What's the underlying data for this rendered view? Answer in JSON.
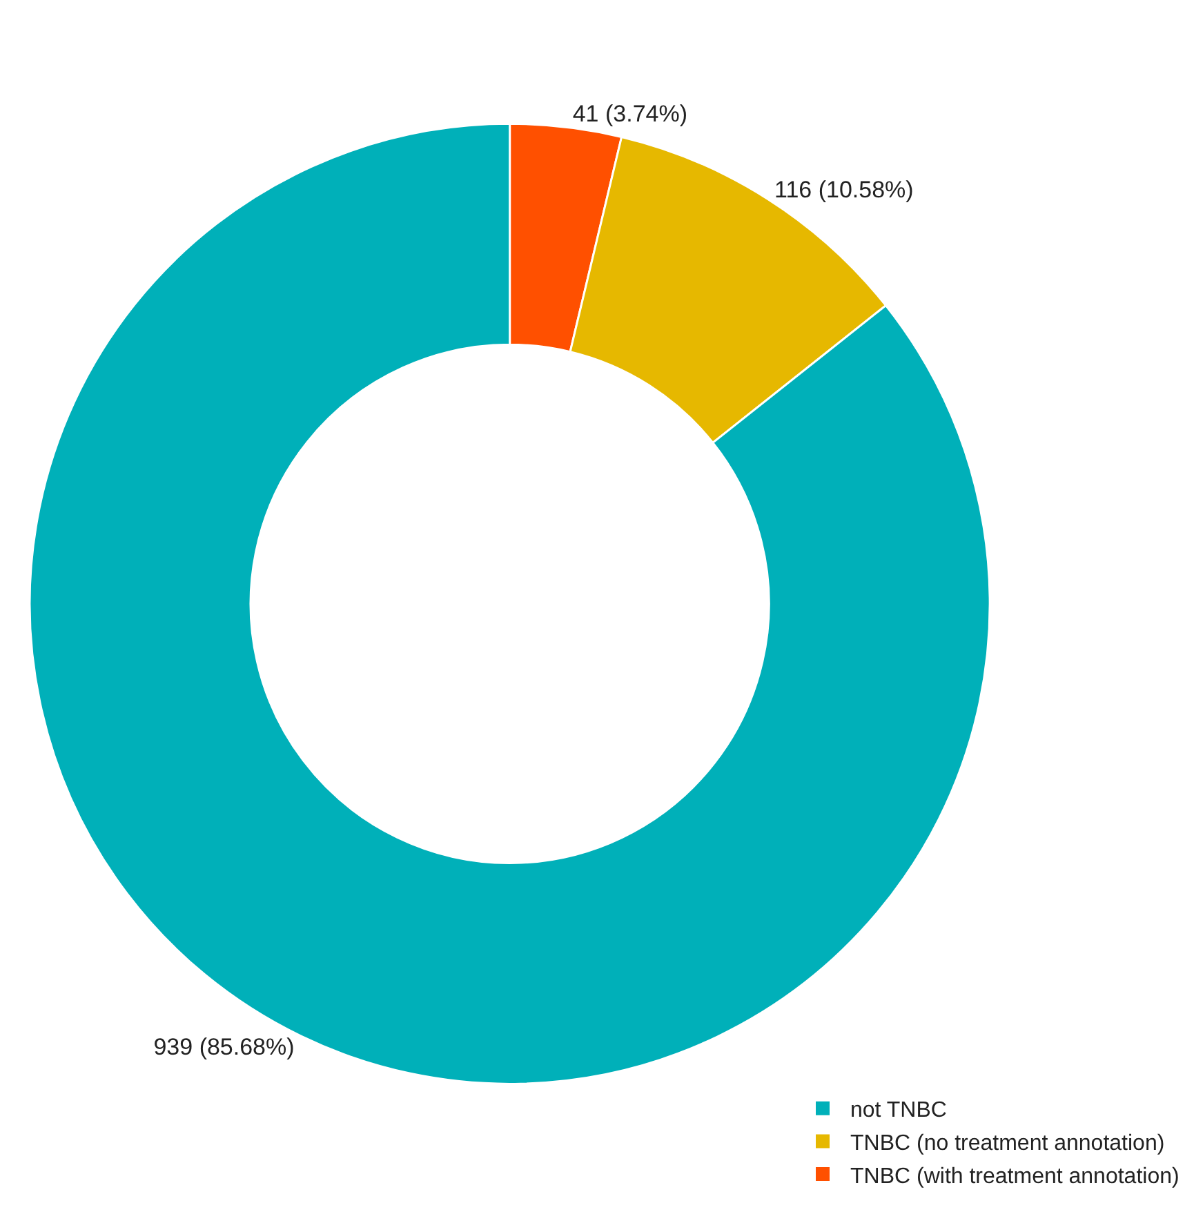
{
  "chart_data": {
    "type": "donut",
    "categories": [
      "not TNBC",
      "TNBC (no treatment annotation)",
      "TNBC (with treatment annotation)"
    ],
    "values": [
      939,
      116,
      41
    ],
    "colors": [
      "#00b0b9",
      "#e6b800",
      "#ff5000"
    ],
    "value_labels": [
      "939 (85.68%)",
      "116 (10.58%)",
      "41 (3.74%)"
    ],
    "legend": "bottom right"
  }
}
